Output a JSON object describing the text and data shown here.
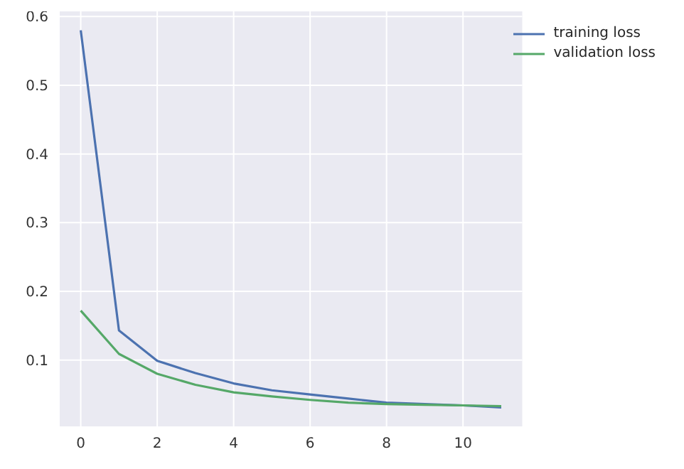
{
  "chart_data": {
    "type": "line",
    "x": [
      0,
      1,
      2,
      3,
      4,
      5,
      6,
      7,
      8,
      9,
      10,
      11
    ],
    "series": [
      {
        "name": "training loss",
        "color": "#4c72b0",
        "values": [
          0.58,
          0.143,
          0.099,
          0.081,
          0.066,
          0.056,
          0.05,
          0.044,
          0.038,
          0.036,
          0.034,
          0.031
        ]
      },
      {
        "name": "validation loss",
        "color": "#55a868",
        "values": [
          0.172,
          0.109,
          0.08,
          0.064,
          0.053,
          0.047,
          0.042,
          0.038,
          0.036,
          0.035,
          0.034,
          0.033
        ]
      }
    ],
    "xlim": [
      -0.55,
      11.55
    ],
    "xticks": [
      0,
      2,
      4,
      6,
      8,
      10
    ],
    "ylim": [
      0.0035,
      0.6075
    ],
    "yticks": [
      0.1,
      0.2,
      0.3,
      0.4,
      0.5,
      0.6
    ],
    "grid": true,
    "legend": "top right",
    "marker": "none",
    "line_style": "solid"
  }
}
